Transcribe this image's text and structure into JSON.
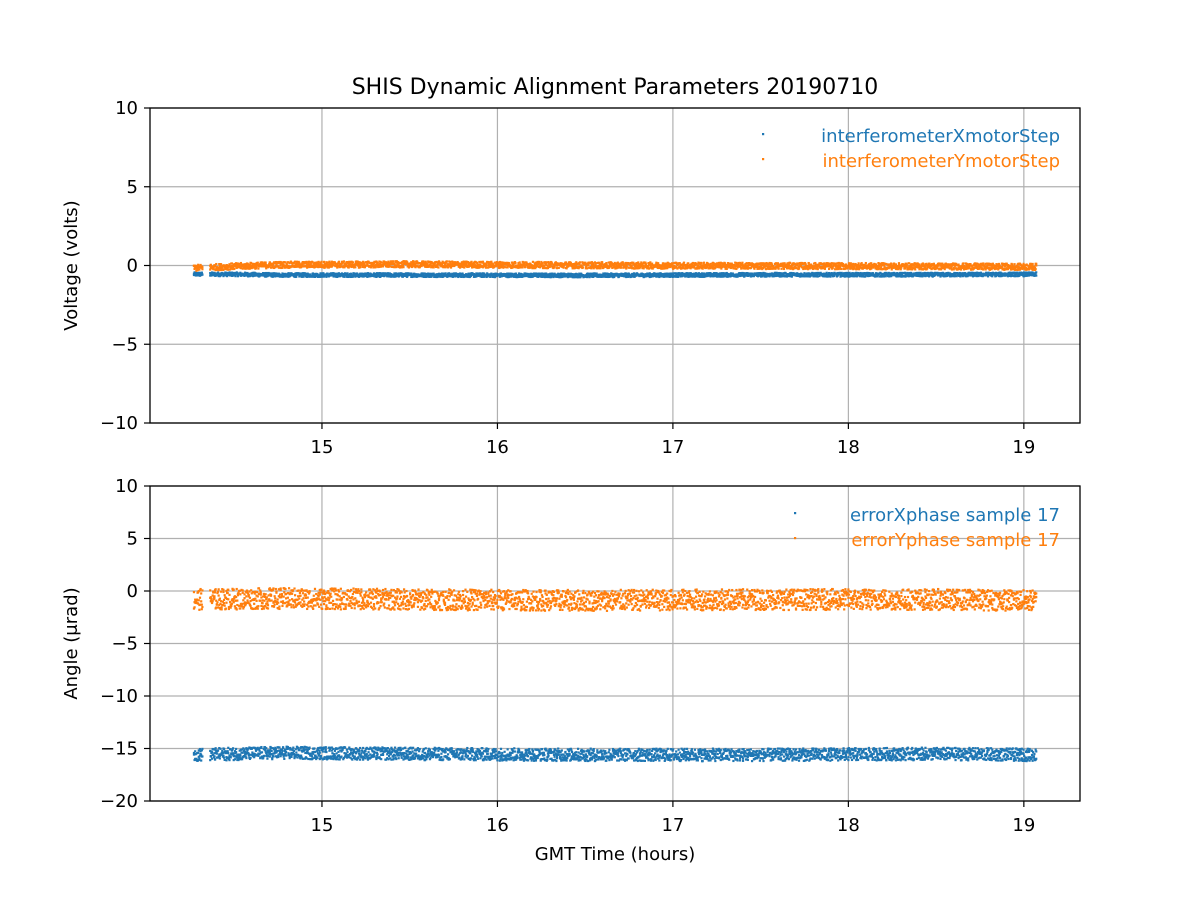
{
  "title": "SHIS Dynamic Alignment Parameters 20190710",
  "chart_data": [
    {
      "type": "scatter",
      "title": "SHIS Dynamic Alignment Parameters 20190710",
      "xlabel": "",
      "ylabel": "Voltage (volts)",
      "xlim": [
        14.02,
        19.32
      ],
      "ylim": [
        -10,
        10
      ],
      "xticks": [
        15,
        16,
        17,
        18,
        19
      ],
      "yticks": [
        10,
        5,
        0,
        -5,
        -10
      ],
      "ytick_labels": [
        "10",
        "5",
        "0",
        "−5",
        "−10"
      ],
      "grid": true,
      "legend_position": "top-right",
      "series": [
        {
          "name": "interferometerXmotorStep",
          "color": "#1f77b4",
          "x_range": [
            14.27,
            19.07
          ],
          "gap": [
            14.32,
            14.36
          ],
          "points": [
            [
              14.27,
              -0.55
            ],
            [
              14.5,
              -0.55
            ],
            [
              14.75,
              -0.6
            ],
            [
              15.5,
              -0.6
            ],
            [
              16.5,
              -0.62
            ],
            [
              17.5,
              -0.58
            ],
            [
              18.5,
              -0.58
            ],
            [
              19.07,
              -0.55
            ]
          ],
          "spread": 0.12
        },
        {
          "name": "interferometerYmotorStep",
          "color": "#ff7f0e",
          "x_range": [
            14.27,
            19.07
          ],
          "gap": [
            14.32,
            14.36
          ],
          "points": [
            [
              14.27,
              -0.15
            ],
            [
              14.5,
              -0.05
            ],
            [
              14.75,
              0.05
            ],
            [
              15.5,
              0.08
            ],
            [
              16.5,
              0.02
            ],
            [
              17.5,
              -0.02
            ],
            [
              18.5,
              -0.05
            ],
            [
              19.07,
              -0.08
            ]
          ],
          "spread": 0.2
        }
      ]
    },
    {
      "type": "scatter",
      "title": "",
      "xlabel": "GMT Time (hours)",
      "ylabel": "Angle (μrad)",
      "xlim": [
        14.02,
        19.32
      ],
      "ylim": [
        -20,
        10
      ],
      "xticks": [
        15,
        16,
        17,
        18,
        19
      ],
      "yticks": [
        10,
        5,
        0,
        -5,
        -10,
        -15,
        -20
      ],
      "ytick_labels": [
        "10",
        "5",
        "0",
        "−5",
        "−10",
        "−15",
        "−20"
      ],
      "grid": true,
      "legend_position": "top-right",
      "series": [
        {
          "name": "errorXphase sample 17",
          "color": "#1f77b4",
          "x_range": [
            14.27,
            19.07
          ],
          "gap": [
            14.32,
            14.36
          ],
          "points": [
            [
              14.27,
              -15.6
            ],
            [
              14.75,
              -15.4
            ],
            [
              15.5,
              -15.5
            ],
            [
              16.5,
              -15.6
            ],
            [
              17.5,
              -15.6
            ],
            [
              18.5,
              -15.5
            ],
            [
              19.07,
              -15.6
            ]
          ],
          "spread": 0.6
        },
        {
          "name": "errorYphase sample 17",
          "color": "#ff7f0e",
          "x_range": [
            14.27,
            19.07
          ],
          "gap": [
            14.32,
            14.36
          ],
          "points": [
            [
              14.27,
              -0.8
            ],
            [
              14.75,
              -0.7
            ],
            [
              15.5,
              -0.8
            ],
            [
              16.5,
              -0.9
            ],
            [
              17.5,
              -0.8
            ],
            [
              18.5,
              -0.8
            ],
            [
              19.07,
              -0.9
            ]
          ],
          "spread": 1.0
        }
      ]
    }
  ]
}
